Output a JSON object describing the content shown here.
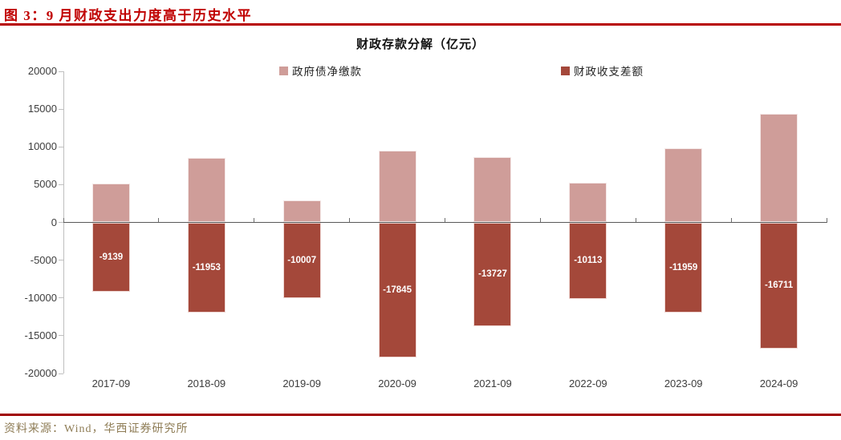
{
  "page": {
    "title": "图 3：9 月财政支出力度高于历史水平",
    "source": "资料来源：Wind，华西证券研究所"
  },
  "chart_data": {
    "type": "bar",
    "title": "财政存款分解（亿元）",
    "categories": [
      "2017-09",
      "2018-09",
      "2019-09",
      "2020-09",
      "2021-09",
      "2022-09",
      "2023-09",
      "2024-09"
    ],
    "series": [
      {
        "name": "政府债净缴款",
        "color": "#cf9d99",
        "border_color": "#f4e8e7",
        "values": [
          5100,
          8500,
          2900,
          9500,
          8650,
          5300,
          9800,
          14330
        ],
        "data_labels": false
      },
      {
        "name": "财政收支差额",
        "color": "#a4483a",
        "border_color": "#eed6d2",
        "values": [
          -9139,
          -11953,
          -10007,
          -17845,
          -13727,
          -10113,
          -11959,
          -16711
        ],
        "data_labels": true
      }
    ],
    "ylim": [
      -20000,
      20000
    ],
    "yticks": [
      20000,
      15000,
      10000,
      5000,
      0,
      -5000,
      -10000,
      -15000,
      -20000
    ],
    "grid": false,
    "legend_position": "top",
    "data_label_color": "#ffffff",
    "xlabel": "",
    "ylabel": ""
  },
  "colors": {
    "title_red": "#c00000",
    "top_rule": "#b70000",
    "bottom_rule": "#a00000",
    "source_text": "#8e7c55",
    "axis_line": "#bfbfbf",
    "zero_line": "#595959",
    "tick_text": "#3d3d3d"
  }
}
